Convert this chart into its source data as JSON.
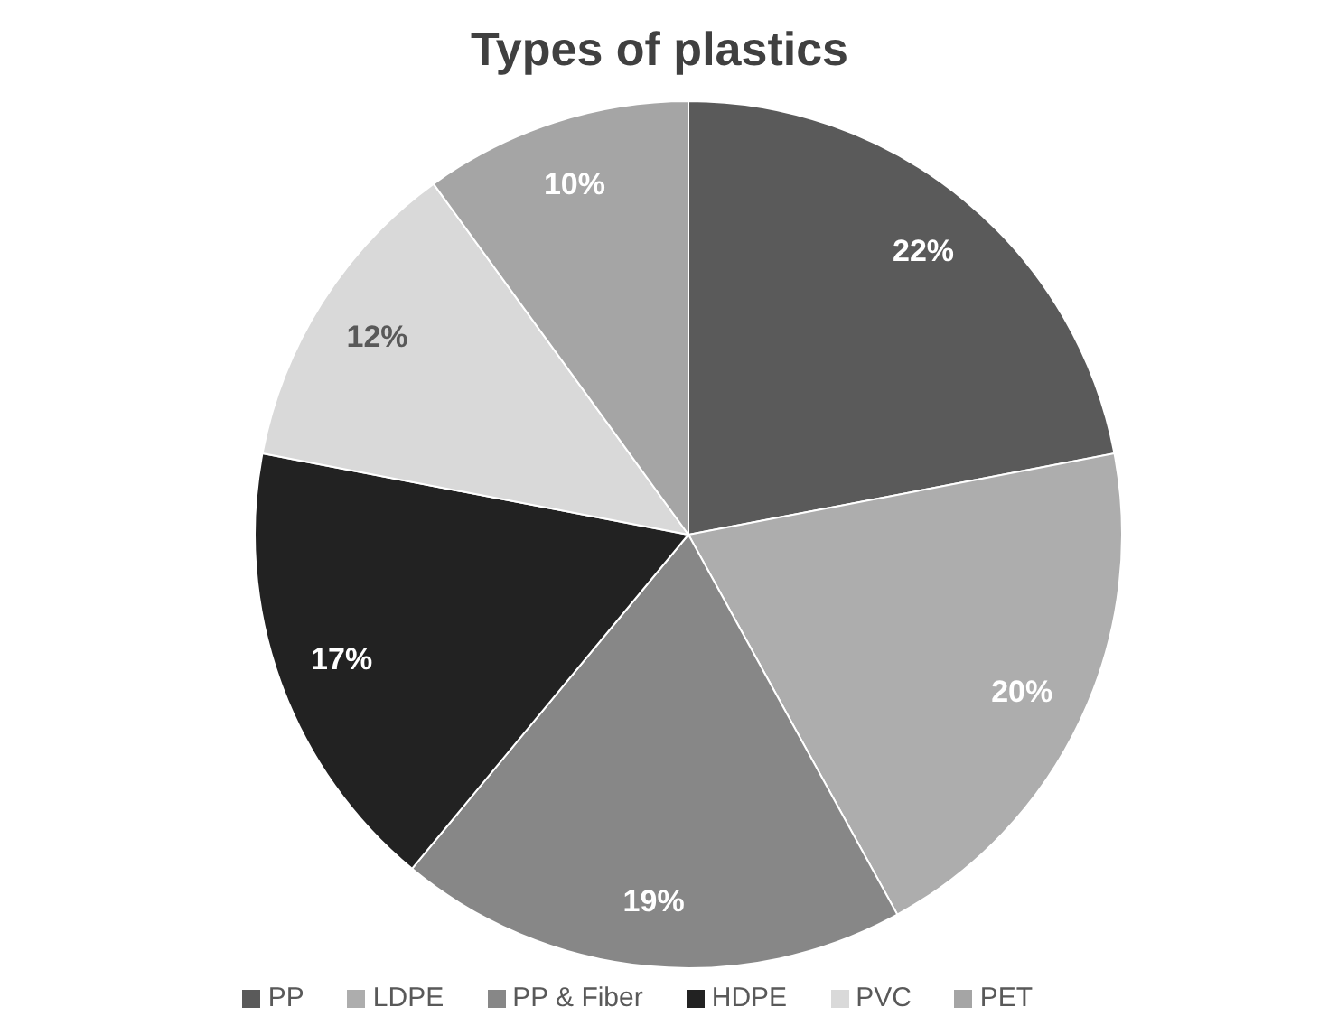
{
  "chart_data": {
    "type": "pie",
    "title": "Types of plastics",
    "categories": [
      "PP",
      "LDPE",
      "PP & Fiber",
      "HDPE",
      "PVC",
      "PET"
    ],
    "values": [
      22,
      20,
      19,
      17,
      12,
      10
    ],
    "value_labels": [
      "22%",
      "20%",
      "19%",
      "17%",
      "12%",
      "10%"
    ],
    "colors": [
      "#5a5a5a",
      "#adadad",
      "#878787",
      "#222222",
      "#d9d9d9",
      "#a5a5a5"
    ],
    "legend": "bottom"
  }
}
